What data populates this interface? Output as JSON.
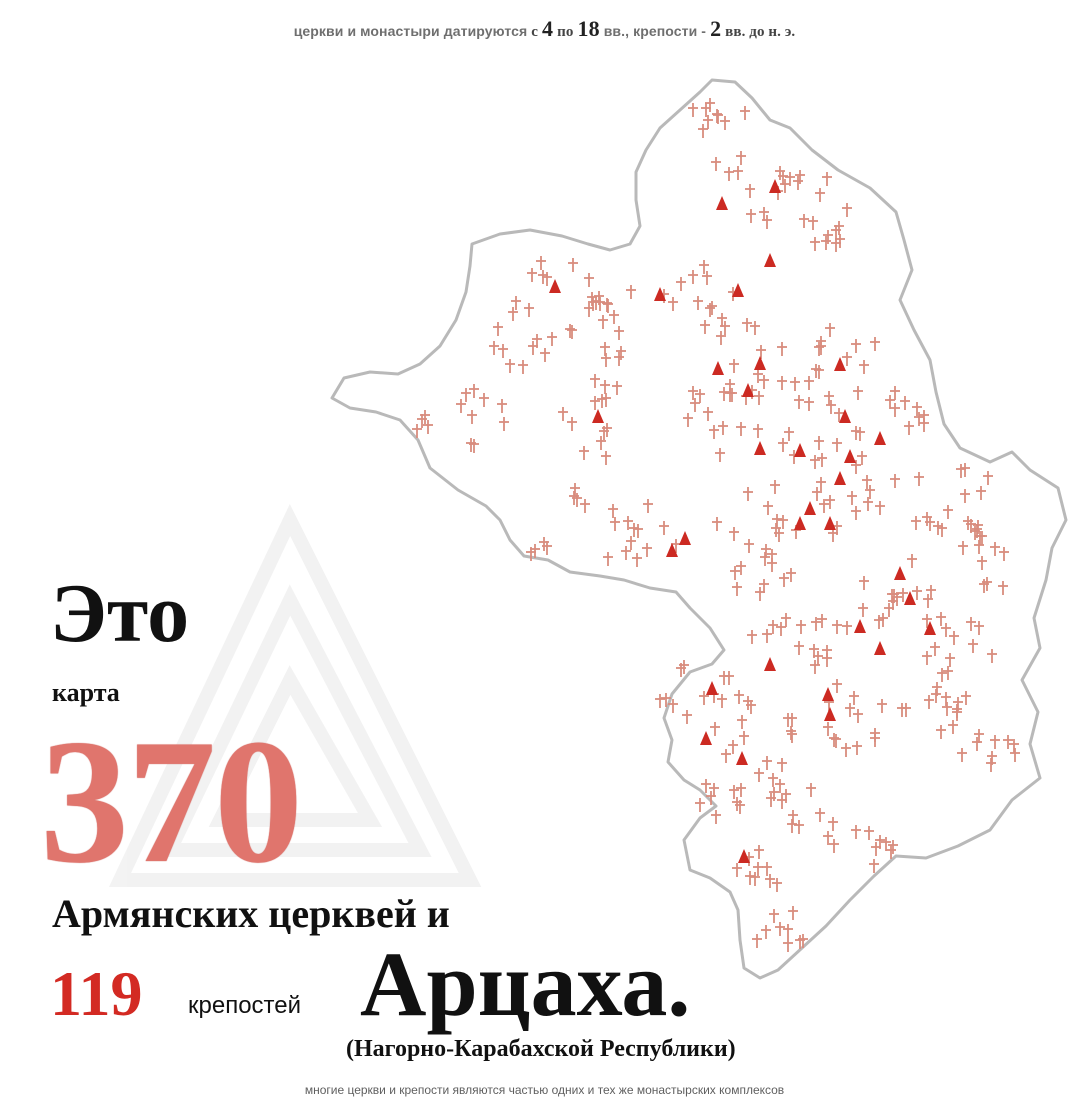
{
  "header": {
    "p1": "церкви и монастыри датируются",
    "p2": "с",
    "n1": "4",
    "p3": "по",
    "n2": "18",
    "p4": "вв., крепости -",
    "n3": "2",
    "p5": "вв. до н. э."
  },
  "headline": {
    "eto": "Это",
    "karta": "карта",
    "churches_count": "370",
    "churches_label": "Армянских церквей и",
    "fortresses_count": "119",
    "fortresses_label": "крепостей",
    "region": "Арцаха.",
    "region_note": "(Нагорно-Карабахской Республики)"
  },
  "footer": {
    "note": "многие церкви и крепости являются частью одних и тех же монастырских комплексов"
  },
  "map": {
    "marker_church_color": "#d98c7e",
    "marker_fortress_color": "#cc2a22",
    "border_color": "#b8b8b8",
    "church_icon": "cross-icon",
    "fortress_icon": "triangle-icon"
  }
}
